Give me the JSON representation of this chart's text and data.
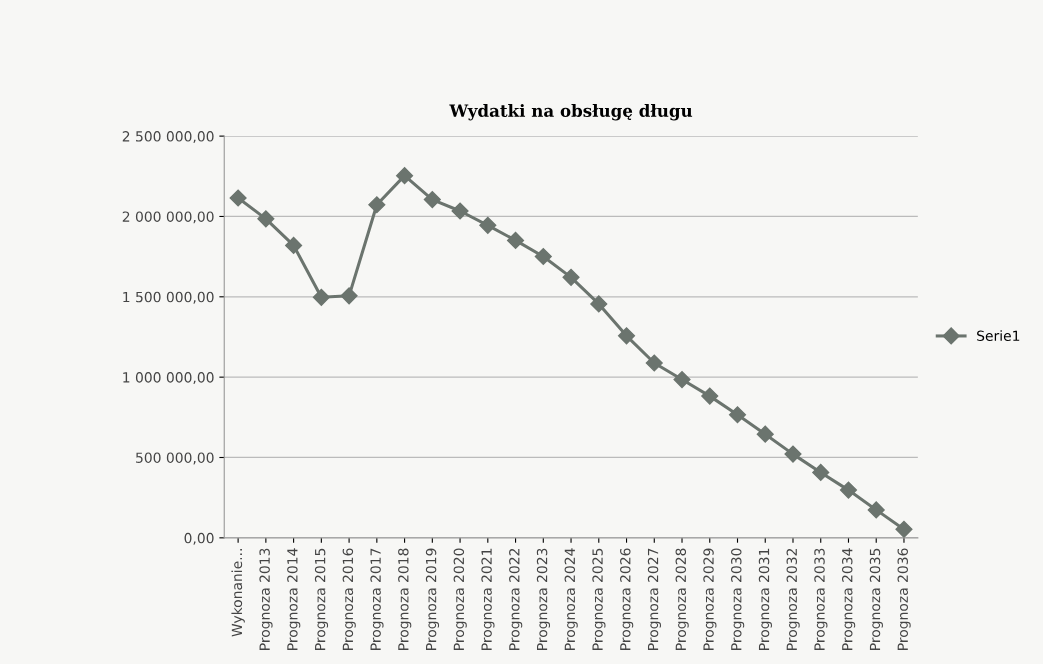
{
  "chart_data": {
    "type": "line",
    "title": "Wydatki na obsługę długu",
    "categories": [
      "Wykonanie...",
      "Prognoza 2013",
      "Prognoza 2014",
      "Prognoza 2015",
      "Prognoza 2016",
      "Prognoza 2017",
      "Prognoza 2018",
      "Prognoza 2019",
      "Prognoza 2020",
      "Prognoza 2021",
      "Prognoza 2022",
      "Prognoza 2023",
      "Prognoza 2024",
      "Prognoza 2025",
      "Prognoza 2026",
      "Prognoza 2027",
      "Prognoza 2028",
      "Prognoza 2029",
      "Prognoza 2030",
      "Prognoza 2031",
      "Prognoza 2032",
      "Prognoza 2033",
      "Prognoza 2034",
      "Prognoza 2035",
      "Prognoza 2036"
    ],
    "series": [
      {
        "name": "Serie1",
        "color": "#6b746e",
        "values": [
          2115000,
          1985000,
          1820000,
          1497000,
          1506000,
          2073000,
          2254000,
          2105000,
          2034000,
          1945000,
          1851000,
          1751000,
          1621000,
          1456000,
          1257000,
          1088000,
          985000,
          882000,
          766000,
          645000,
          521000,
          407000,
          297000,
          174000,
          53000
        ]
      }
    ],
    "ylim": [
      0,
      2500000
    ],
    "yticks": [
      {
        "value": 0,
        "label": "0,00"
      },
      {
        "value": 500000,
        "label": "500 000,00"
      },
      {
        "value": 1000000,
        "label": "1 000 000,00"
      },
      {
        "value": 1500000,
        "label": "1 500 000,00"
      },
      {
        "value": 2000000,
        "label": "2 000 000,00"
      },
      {
        "value": 2500000,
        "label": "2 500 000,00"
      }
    ],
    "grid": "y",
    "legend": "right",
    "marker": "diamond",
    "line_style": "solid"
  }
}
